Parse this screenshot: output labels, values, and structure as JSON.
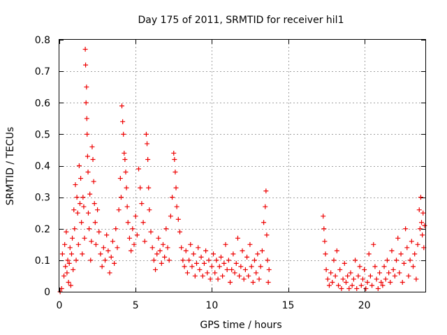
{
  "chart_data": {
    "type": "scatter",
    "title": "Day 175 of 2011, SRMTID for receiver hil1",
    "xlabel": "GPS time / hours",
    "ylabel": "SRMTID / TECUs",
    "xlim": [
      0,
      24
    ],
    "ylim": [
      0,
      0.8
    ],
    "xticks": [
      0,
      5,
      10,
      15,
      20
    ],
    "xtick_labels": [
      "0",
      "5",
      "10",
      "15",
      "20"
    ],
    "yticks": [
      0,
      0.1,
      0.2,
      0.3,
      0.4,
      0.5,
      0.6,
      0.7,
      0.8
    ],
    "ytick_labels": [
      "0",
      "0.1",
      "0.2",
      "0.3",
      "0.4",
      "0.5",
      "0.6",
      "0.7",
      "0.8"
    ],
    "grid": true,
    "marker": "+",
    "color": "#ee0000",
    "series": [
      {
        "name": "SRMTID",
        "points": [
          [
            0.05,
            0.0
          ],
          [
            0.15,
            0.01
          ],
          [
            0.2,
            0.12
          ],
          [
            0.3,
            0.05
          ],
          [
            0.35,
            0.15
          ],
          [
            0.4,
            0.08
          ],
          [
            0.45,
            0.19
          ],
          [
            0.5,
            0.06
          ],
          [
            0.55,
            0.1
          ],
          [
            0.6,
            0.03
          ],
          [
            0.65,
            0.09
          ],
          [
            0.7,
            0.14
          ],
          [
            0.75,
            0.02
          ],
          [
            0.8,
            0.12
          ],
          [
            0.85,
            0.17
          ],
          [
            0.9,
            0.07
          ],
          [
            0.95,
            0.26
          ],
          [
            1.0,
            0.2
          ],
          [
            1.05,
            0.34
          ],
          [
            1.1,
            0.1
          ],
          [
            1.15,
            0.3
          ],
          [
            1.2,
            0.25
          ],
          [
            1.25,
            0.15
          ],
          [
            1.3,
            0.4
          ],
          [
            1.35,
            0.28
          ],
          [
            1.4,
            0.36
          ],
          [
            1.45,
            0.22
          ],
          [
            1.5,
            0.12
          ],
          [
            1.55,
            0.3
          ],
          [
            1.6,
            0.27
          ],
          [
            1.65,
            0.17
          ],
          [
            1.7,
            0.77
          ],
          [
            1.72,
            0.72
          ],
          [
            1.75,
            0.6
          ],
          [
            1.78,
            0.65
          ],
          [
            1.8,
            0.55
          ],
          [
            1.82,
            0.5
          ],
          [
            1.85,
            0.43
          ],
          [
            1.88,
            0.38
          ],
          [
            1.9,
            0.25
          ],
          [
            1.95,
            0.2
          ],
          [
            2.0,
            0.31
          ],
          [
            2.05,
            0.1
          ],
          [
            2.1,
            0.16
          ],
          [
            2.15,
            0.46
          ],
          [
            2.2,
            0.42
          ],
          [
            2.25,
            0.35
          ],
          [
            2.3,
            0.28
          ],
          [
            2.35,
            0.22
          ],
          [
            2.4,
            0.15
          ],
          [
            2.5,
            0.26
          ],
          [
            2.6,
            0.19
          ],
          [
            2.7,
            0.12
          ],
          [
            2.8,
            0.08
          ],
          [
            2.9,
            0.14
          ],
          [
            3.0,
            0.1
          ],
          [
            3.1,
            0.18
          ],
          [
            3.2,
            0.13
          ],
          [
            3.3,
            0.06
          ],
          [
            3.4,
            0.11
          ],
          [
            3.5,
            0.16
          ],
          [
            3.6,
            0.09
          ],
          [
            3.7,
            0.2
          ],
          [
            3.8,
            0.14
          ],
          [
            3.9,
            0.26
          ],
          [
            4.0,
            0.36
          ],
          [
            4.05,
            0.3
          ],
          [
            4.1,
            0.59
          ],
          [
            4.15,
            0.54
          ],
          [
            4.2,
            0.5
          ],
          [
            4.25,
            0.44
          ],
          [
            4.3,
            0.42
          ],
          [
            4.35,
            0.38
          ],
          [
            4.4,
            0.33
          ],
          [
            4.45,
            0.27
          ],
          [
            4.5,
            0.22
          ],
          [
            4.6,
            0.17
          ],
          [
            4.7,
            0.13
          ],
          [
            4.8,
            0.2
          ],
          [
            4.9,
            0.15
          ],
          [
            5.0,
            0.24
          ],
          [
            5.1,
            0.18
          ],
          [
            5.2,
            0.39
          ],
          [
            5.3,
            0.33
          ],
          [
            5.4,
            0.28
          ],
          [
            5.5,
            0.22
          ],
          [
            5.6,
            0.16
          ],
          [
            5.7,
            0.5
          ],
          [
            5.75,
            0.47
          ],
          [
            5.8,
            0.42
          ],
          [
            5.85,
            0.33
          ],
          [
            5.9,
            0.26
          ],
          [
            6.0,
            0.19
          ],
          [
            6.1,
            0.14
          ],
          [
            6.2,
            0.1
          ],
          [
            6.3,
            0.07
          ],
          [
            6.4,
            0.12
          ],
          [
            6.5,
            0.17
          ],
          [
            6.6,
            0.13
          ],
          [
            6.7,
            0.09
          ],
          [
            6.8,
            0.15
          ],
          [
            6.9,
            0.11
          ],
          [
            7.0,
            0.2
          ],
          [
            7.1,
            0.14
          ],
          [
            7.2,
            0.1
          ],
          [
            7.3,
            0.24
          ],
          [
            7.4,
            0.3
          ],
          [
            7.5,
            0.44
          ],
          [
            7.55,
            0.42
          ],
          [
            7.6,
            0.38
          ],
          [
            7.65,
            0.33
          ],
          [
            7.7,
            0.27
          ],
          [
            7.8,
            0.23
          ],
          [
            7.9,
            0.19
          ],
          [
            8.0,
            0.14
          ],
          [
            8.1,
            0.1
          ],
          [
            8.2,
            0.08
          ],
          [
            8.3,
            0.13
          ],
          [
            8.4,
            0.06
          ],
          [
            8.5,
            0.1
          ],
          [
            8.6,
            0.15
          ],
          [
            8.7,
            0.08
          ],
          [
            8.8,
            0.12
          ],
          [
            8.9,
            0.05
          ],
          [
            9.0,
            0.09
          ],
          [
            9.1,
            0.14
          ],
          [
            9.2,
            0.07
          ],
          [
            9.3,
            0.11
          ],
          [
            9.4,
            0.05
          ],
          [
            9.5,
            0.09
          ],
          [
            9.6,
            0.13
          ],
          [
            9.7,
            0.06
          ],
          [
            9.8,
            0.1
          ],
          [
            9.9,
            0.04
          ],
          [
            10.0,
            0.08
          ],
          [
            10.1,
            0.12
          ],
          [
            10.2,
            0.06
          ],
          [
            10.3,
            0.1
          ],
          [
            10.4,
            0.04
          ],
          [
            10.5,
            0.08
          ],
          [
            10.6,
            0.11
          ],
          [
            10.7,
            0.05
          ],
          [
            10.8,
            0.09
          ],
          [
            10.9,
            0.15
          ],
          [
            11.0,
            0.07
          ],
          [
            11.1,
            0.1
          ],
          [
            11.2,
            0.03
          ],
          [
            11.3,
            0.07
          ],
          [
            11.4,
            0.12
          ],
          [
            11.5,
            0.06
          ],
          [
            11.6,
            0.09
          ],
          [
            11.7,
            0.17
          ],
          [
            11.8,
            0.05
          ],
          [
            11.9,
            0.08
          ],
          [
            12.0,
            0.13
          ],
          [
            12.1,
            0.04
          ],
          [
            12.2,
            0.07
          ],
          [
            12.3,
            0.11
          ],
          [
            12.4,
            0.05
          ],
          [
            12.5,
            0.15
          ],
          [
            12.6,
            0.08
          ],
          [
            12.7,
            0.03
          ],
          [
            12.8,
            0.1
          ],
          [
            12.9,
            0.06
          ],
          [
            13.0,
            0.12
          ],
          [
            13.1,
            0.04
          ],
          [
            13.2,
            0.08
          ],
          [
            13.3,
            0.13
          ],
          [
            13.4,
            0.22
          ],
          [
            13.5,
            0.27
          ],
          [
            13.55,
            0.32
          ],
          [
            13.6,
            0.18
          ],
          [
            13.65,
            0.1
          ],
          [
            13.7,
            0.03
          ],
          [
            13.75,
            0.07
          ],
          [
            17.3,
            0.24
          ],
          [
            17.35,
            0.2
          ],
          [
            17.4,
            0.16
          ],
          [
            17.45,
            0.12
          ],
          [
            17.5,
            0.07
          ],
          [
            17.6,
            0.04
          ],
          [
            17.7,
            0.02
          ],
          [
            17.8,
            0.06
          ],
          [
            17.9,
            0.03
          ],
          [
            18.0,
            0.1
          ],
          [
            18.1,
            0.05
          ],
          [
            18.2,
            0.13
          ],
          [
            18.3,
            0.02
          ],
          [
            18.4,
            0.07
          ],
          [
            18.5,
            0.01
          ],
          [
            18.6,
            0.04
          ],
          [
            18.7,
            0.09
          ],
          [
            18.8,
            0.03
          ],
          [
            18.9,
            0.05
          ],
          [
            19.0,
            0.01
          ],
          [
            19.1,
            0.06
          ],
          [
            19.2,
            0.02
          ],
          [
            19.3,
            0.04
          ],
          [
            19.4,
            0.1
          ],
          [
            19.5,
            0.01
          ],
          [
            19.6,
            0.05
          ],
          [
            19.7,
            0.08
          ],
          [
            19.8,
            0.02
          ],
          [
            19.9,
            0.04
          ],
          [
            20.0,
            0.07
          ],
          [
            20.1,
            0.01
          ],
          [
            20.2,
            0.03
          ],
          [
            20.3,
            0.12
          ],
          [
            20.4,
            0.05
          ],
          [
            20.5,
            0.02
          ],
          [
            20.6,
            0.15
          ],
          [
            20.7,
            0.08
          ],
          [
            20.8,
            0.04
          ],
          [
            20.9,
            0.01
          ],
          [
            21.0,
            0.06
          ],
          [
            21.1,
            0.03
          ],
          [
            21.2,
            0.02
          ],
          [
            21.3,
            0.08
          ],
          [
            21.4,
            0.04
          ],
          [
            21.5,
            0.1
          ],
          [
            21.6,
            0.06
          ],
          [
            21.7,
            0.03
          ],
          [
            21.8,
            0.13
          ],
          [
            21.9,
            0.07
          ],
          [
            22.0,
            0.05
          ],
          [
            22.1,
            0.1
          ],
          [
            22.2,
            0.17
          ],
          [
            22.3,
            0.06
          ],
          [
            22.4,
            0.12
          ],
          [
            22.5,
            0.03
          ],
          [
            22.6,
            0.09
          ],
          [
            22.7,
            0.2
          ],
          [
            22.8,
            0.14
          ],
          [
            22.9,
            0.05
          ],
          [
            23.0,
            0.1
          ],
          [
            23.1,
            0.16
          ],
          [
            23.2,
            0.08
          ],
          [
            23.3,
            0.12
          ],
          [
            23.4,
            0.04
          ],
          [
            23.5,
            0.15
          ],
          [
            23.6,
            0.26
          ],
          [
            23.65,
            0.2
          ],
          [
            23.7,
            0.3
          ],
          [
            23.75,
            0.22
          ],
          [
            23.8,
            0.18
          ],
          [
            23.85,
            0.25
          ],
          [
            23.9,
            0.14
          ],
          [
            23.95,
            0.21
          ]
        ]
      }
    ]
  }
}
